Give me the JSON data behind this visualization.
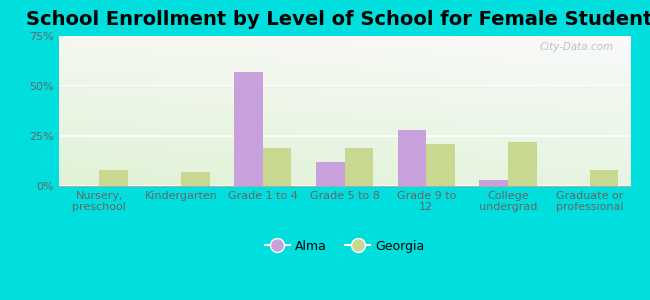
{
  "title": "School Enrollment by Level of School for Female Students",
  "categories": [
    "Nursery,\npreschool",
    "Kindergarten",
    "Grade 1 to 4",
    "Grade 5 to 8",
    "Grade 9 to\n12",
    "College\nundergrad",
    "Graduate or\nprofessional"
  ],
  "alma_values": [
    0.0,
    0.0,
    57.0,
    12.0,
    28.0,
    3.0,
    0.0
  ],
  "georgia_values": [
    8.0,
    7.0,
    19.0,
    19.0,
    21.0,
    22.0,
    8.0
  ],
  "alma_color": "#c8a0dc",
  "georgia_color": "#c8d890",
  "background_color": "#00dede",
  "ylim": [
    0,
    75
  ],
  "yticks": [
    0,
    25,
    50,
    75
  ],
  "ytick_labels": [
    "0%",
    "25%",
    "50%",
    "75%"
  ],
  "title_fontsize": 14,
  "tick_fontsize": 8,
  "legend_fontsize": 9,
  "bar_width": 0.35,
  "watermark": "City-Data.com"
}
